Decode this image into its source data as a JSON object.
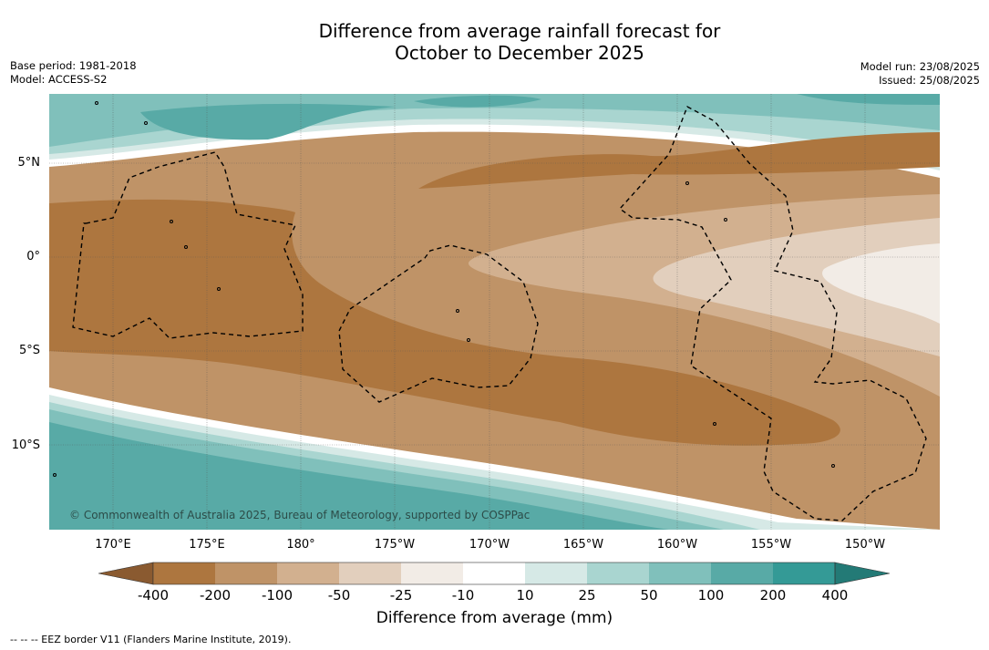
{
  "title_line1": "Difference from average rainfall forecast for",
  "title_line2": "October to December 2025",
  "base_period": "Base period: 1981-2018",
  "model": "Model: ACCESS-S2",
  "model_run": "Model run: 23/08/2025",
  "issued": "Issued: 25/08/2025",
  "copyright": "© Commonwealth of Australia 2025, Bureau of Meteorology, supported by COSPPac",
  "lat_labels": [
    "5°N",
    "0°",
    "5°S",
    "10°S"
  ],
  "lon_labels": [
    "170°E",
    "175°E",
    "180°",
    "175°W",
    "170°W",
    "165°W",
    "160°W",
    "155°W",
    "150°W"
  ],
  "colorbar": {
    "title": "Difference from average (mm)",
    "ticks": [
      "-400",
      "-200",
      "-100",
      "-50",
      "-25",
      "-10",
      "10",
      "25",
      "50",
      "100",
      "200",
      "400"
    ],
    "colors": {
      "lt400": "#8a5a30",
      "m400_200": "#ad763f",
      "m200_100": "#bf9367",
      "m100_50": "#d2b08f",
      "m50_25": "#e2cfbd",
      "m25_10": "#f2ece6",
      "m10_10": "#ffffff",
      "p10_25": "#d6e9e6",
      "p25_50": "#a9d5d0",
      "p50_100": "#80c0bb",
      "p100_200": "#58aaa6",
      "p200_400": "#349a96",
      "gt400": "#237a76"
    }
  },
  "legend_note": "--  --  -- EEZ border V11 (Flanders Marine Institute, 2019)."
}
